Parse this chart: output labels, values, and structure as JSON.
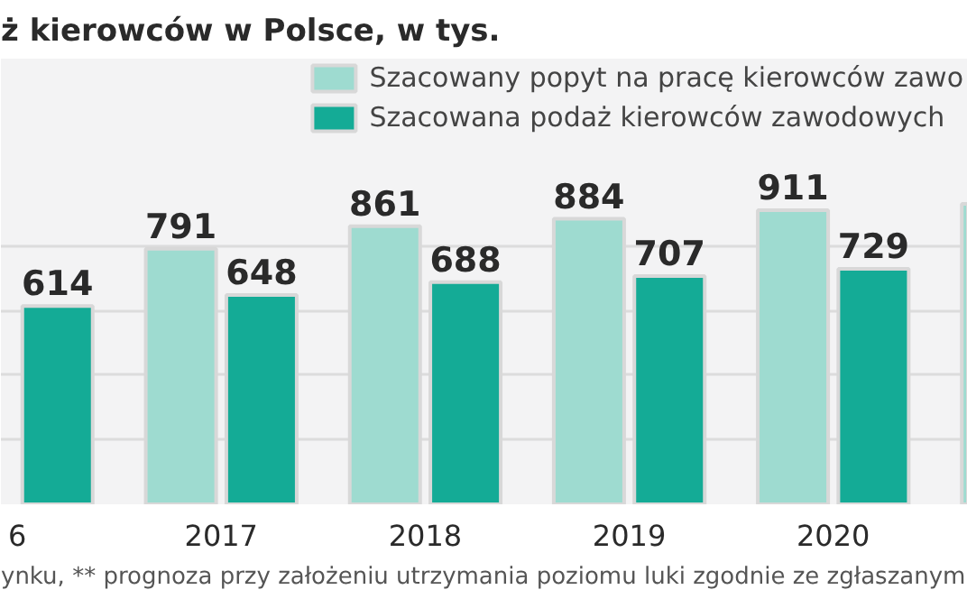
{
  "chart_data": {
    "type": "bar",
    "title": "ż kierowców w Polsce, w tys.",
    "categories": [
      "6",
      "2017",
      "2018",
      "2019",
      "2020",
      null
    ],
    "series": [
      {
        "name": "Szacowany popyt na pracę kierowców zawo",
        "color": "#9edbd0",
        "values": [
          null,
          791,
          861,
          884,
          911,
          930
        ],
        "value_labels": [
          null,
          "791",
          "861",
          "884",
          "911",
          null
        ]
      },
      {
        "name": "Szacowana podaż kierowców zawodowych",
        "color": "#14ab96",
        "values": [
          614,
          648,
          688,
          707,
          729,
          null
        ],
        "value_labels": [
          "614",
          "648",
          "688",
          "707",
          "729",
          null
        ]
      }
    ],
    "ylim": [
      0,
      1380
    ],
    "yticks": [
      {
        "value": 200,
        "label": null
      },
      {
        "value": 400,
        "label": null
      },
      {
        "value": 600,
        "label": null
      },
      {
        "value": 800,
        "label": null
      }
    ],
    "tick_labels": "x",
    "grid": "y",
    "legend": "top right",
    "annotations": [
      "ynku, ** prognoza przy założeniu utrzymania poziomu luki zgodnie ze zgłaszanym"
    ]
  }
}
